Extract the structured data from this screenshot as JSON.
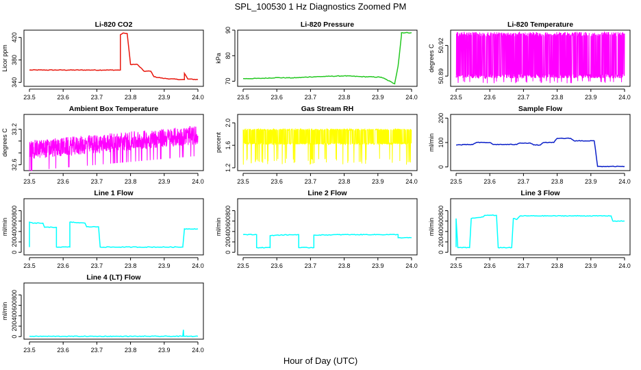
{
  "figure_title": "SPL_100530  1 Hz Diagnostics Zoomed PM",
  "x_axis_label": "Hour of Day (UTC)",
  "chart_data": [
    {
      "type": "line",
      "title": "Li-820 CO2",
      "ylabel": "Licor ppm",
      "color": "#e8160c",
      "xlim": [
        23.5,
        24.0
      ],
      "ylim": [
        333,
        433
      ],
      "xticks": [
        "23.5",
        "23.6",
        "23.7",
        "23.8",
        "23.9",
        "24.0"
      ],
      "yticks": [
        340,
        380,
        420
      ],
      "x": [
        23.5,
        23.77,
        23.77,
        23.78,
        23.79,
        23.8,
        23.82,
        23.84,
        23.86,
        23.87,
        23.9,
        23.95,
        23.96,
        23.96,
        23.97,
        24.0
      ],
      "y": [
        362,
        362,
        425,
        428,
        427,
        372,
        372,
        360,
        360,
        350,
        347,
        345,
        345,
        356,
        346,
        345
      ]
    },
    {
      "type": "line",
      "title": "Li-820 Pressure",
      "ylabel": "kPa",
      "color": "#22c71f",
      "xlim": [
        23.5,
        24.0
      ],
      "ylim": [
        68,
        90
      ],
      "xticks": [
        "23.5",
        "23.6",
        "23.7",
        "23.8",
        "23.9",
        "24.0"
      ],
      "yticks": [
        70,
        80,
        90
      ],
      "x": [
        23.5,
        23.55,
        23.6,
        23.65,
        23.7,
        23.75,
        23.8,
        23.85,
        23.91,
        23.95,
        23.95,
        23.96,
        23.97,
        23.97,
        24.0
      ],
      "y": [
        71,
        71.1,
        71.4,
        71.3,
        71.7,
        71.9,
        72.1,
        71.8,
        71.6,
        69,
        69.2,
        76,
        88,
        89,
        89
      ]
    },
    {
      "type": "noise",
      "title": "Li-820 Temperature",
      "ylabel": "degrees C",
      "color": "#ff00ff",
      "xlim": [
        23.5,
        24.0
      ],
      "ylim": [
        50.88,
        50.935
      ],
      "xticks": [
        "23.5",
        "23.6",
        "23.7",
        "23.8",
        "23.9",
        "24.0"
      ],
      "ytick_labels": [
        "50.89",
        "50.92"
      ],
      "yticks": [
        50.89,
        50.92
      ],
      "band_low": 50.89,
      "band_high": 50.931,
      "dip_low": 50.883
    },
    {
      "type": "noise",
      "title": "Ambient Box Temperature",
      "ylabel": "degrees C",
      "color": "#ff00ff",
      "xlim": [
        23.5,
        24.0
      ],
      "ylim": [
        32.5,
        33.45
      ],
      "xticks": [
        "23.5",
        "23.6",
        "23.7",
        "23.8",
        "23.9",
        "24.0"
      ],
      "yticks": [
        32.6,
        32.8,
        33.0,
        33.2
      ],
      "ytick_labels": [
        "32.6",
        "",
        "",
        "33.2"
      ],
      "trend_start": 32.85,
      "trend_end": 33.1,
      "spread": 0.16
    },
    {
      "type": "noise",
      "title": "Gas Stream RH",
      "ylabel": "percent",
      "color": "#ffff00",
      "xlim": [
        23.5,
        24.0
      ],
      "ylim": [
        1.15,
        2.15
      ],
      "xticks": [
        "23.5",
        "23.6",
        "23.7",
        "23.8",
        "23.9",
        "24.0"
      ],
      "yticks": [
        1.2,
        1.6,
        2.0
      ],
      "ytick_labels": [
        "1.2",
        "1.6",
        "2.0"
      ],
      "band_low": 1.63,
      "band_high": 1.88,
      "dip_low": 1.25
    },
    {
      "type": "line",
      "title": "Sample Flow",
      "ylabel": "ml/min",
      "color": "#0a1fc8",
      "xlim": [
        23.5,
        24.0
      ],
      "ylim": [
        -15,
        215
      ],
      "xticks": [
        "23.5",
        "23.6",
        "23.7",
        "23.8",
        "23.9",
        "24.0"
      ],
      "yticks": [
        0,
        100,
        200
      ],
      "x": [
        23.5,
        23.55,
        23.56,
        23.6,
        23.61,
        23.68,
        23.69,
        23.72,
        23.73,
        23.75,
        23.76,
        23.79,
        23.8,
        23.84,
        23.85,
        23.91,
        23.92,
        24.0
      ],
      "y": [
        90,
        92,
        100,
        100,
        92,
        92,
        98,
        98,
        90,
        90,
        100,
        100,
        117,
        117,
        107,
        107,
        2,
        2
      ]
    },
    {
      "type": "line",
      "title": "Line 1 Flow",
      "ylabel": "ml/min",
      "color": "#00ffff",
      "xlim": [
        23.5,
        24.0
      ],
      "ylim": [
        -50,
        1030
      ],
      "xticks": [
        "23.5",
        "23.6",
        "23.7",
        "23.8",
        "23.9",
        "24.0"
      ],
      "yticks": [
        0,
        200,
        400,
        600,
        800
      ],
      "x": [
        23.5,
        23.5,
        23.51,
        23.54,
        23.545,
        23.58,
        23.58,
        23.62,
        23.62,
        23.665,
        23.67,
        23.705,
        23.71,
        23.955,
        23.96,
        24.0
      ],
      "y": [
        100,
        580,
        560,
        560,
        480,
        480,
        100,
        100,
        580,
        560,
        490,
        490,
        100,
        100,
        450,
        450
      ]
    },
    {
      "type": "line",
      "title": "Line 2 Flow",
      "ylabel": "ml/min",
      "color": "#00ffff",
      "xlim": [
        23.5,
        24.0
      ],
      "ylim": [
        -50,
        1030
      ],
      "xticks": [
        "23.5",
        "23.6",
        "23.7",
        "23.8",
        "23.9",
        "24.0"
      ],
      "yticks": [
        0,
        200,
        400,
        600,
        800
      ],
      "x": [
        23.5,
        23.54,
        23.54,
        23.58,
        23.58,
        23.6,
        23.665,
        23.665,
        23.71,
        23.71,
        23.8,
        23.96,
        23.96,
        24.0
      ],
      "y": [
        340,
        340,
        90,
        90,
        320,
        330,
        340,
        90,
        90,
        330,
        340,
        340,
        280,
        280
      ]
    },
    {
      "type": "line",
      "title": "Line 3 Flow",
      "ylabel": "ml/min",
      "color": "#00ffff",
      "xlim": [
        23.5,
        24.0
      ],
      "ylim": [
        -50,
        1030
      ],
      "xticks": [
        "23.5",
        "23.6",
        "23.7",
        "23.8",
        "23.9",
        "24.0"
      ],
      "yticks": [
        0,
        200,
        400,
        600,
        800
      ],
      "x": [
        23.5,
        23.5,
        23.505,
        23.54,
        23.545,
        23.58,
        23.585,
        23.62,
        23.625,
        23.665,
        23.67,
        23.68,
        23.69,
        23.96,
        23.965,
        24.0
      ],
      "y": [
        100,
        650,
        90,
        90,
        650,
        680,
        710,
        710,
        90,
        90,
        650,
        630,
        700,
        700,
        600,
        600
      ]
    },
    {
      "type": "line",
      "title": "Line 4 (LT) Flow",
      "ylabel": "ml/min",
      "color": "#00ffff",
      "xlim": [
        23.5,
        24.0
      ],
      "ylim": [
        -50,
        1030
      ],
      "xticks": [
        "23.5",
        "23.6",
        "23.7",
        "23.8",
        "23.9",
        "24.0"
      ],
      "yticks": [
        0,
        200,
        400,
        600,
        800
      ],
      "x": [
        23.5,
        23.955,
        23.957,
        23.958,
        23.96,
        24.0
      ],
      "y": [
        5,
        5,
        130,
        5,
        5,
        5
      ]
    }
  ]
}
